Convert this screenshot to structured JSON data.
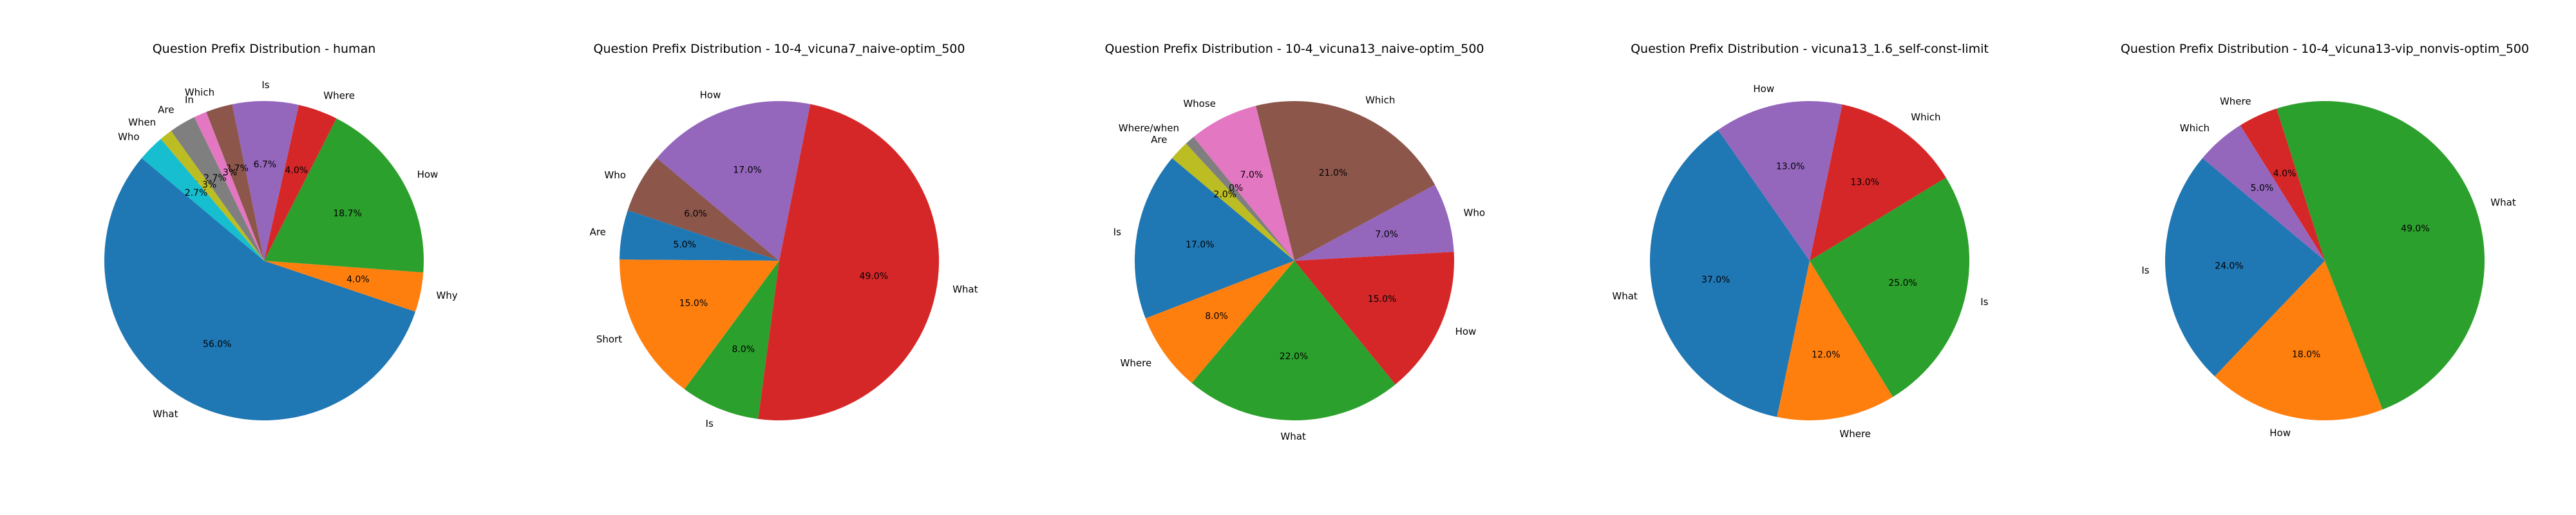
{
  "chart_data": [
    {
      "type": "pie",
      "title": "Question Prefix Distribution - human",
      "start_angle": 140,
      "slices": [
        {
          "label": "What",
          "value": 56.0,
          "pct_label": "56.0%",
          "color": "#1f77b4"
        },
        {
          "label": "Why",
          "value": 4.0,
          "pct_label": "4.0%",
          "color": "#ff7f0e"
        },
        {
          "label": "How",
          "value": 18.7,
          "pct_label": "18.7%",
          "color": "#2ca02c"
        },
        {
          "label": "Where",
          "value": 4.0,
          "pct_label": "4.0%",
          "color": "#d62728"
        },
        {
          "label": "Is",
          "value": 6.7,
          "pct_label": "6.7%",
          "color": "#9467bd"
        },
        {
          "label": "Which",
          "value": 2.7,
          "pct_label": "2.7%",
          "color": "#8c564b"
        },
        {
          "label": "In",
          "value": 1.3,
          "pct_label": "1.3%",
          "color": "#e377c2"
        },
        {
          "label": "Are",
          "value": 2.7,
          "pct_label": "2.7%",
          "color": "#7f7f7f"
        },
        {
          "label": "When",
          "value": 1.3,
          "pct_label": "1.3%",
          "color": "#bcbd22"
        },
        {
          "label": "Who",
          "value": 2.7,
          "pct_label": "2.7%",
          "color": "#17becf"
        }
      ]
    },
    {
      "type": "pie",
      "title": "Question Prefix Distribution - 10-4_vicuna7_naive-optim_500",
      "start_angle": 140,
      "slices": [
        {
          "label": "Who",
          "value": 6.0,
          "pct_label": "6.0%",
          "color": "#8c564b"
        },
        {
          "label": "Are",
          "value": 5.0,
          "pct_label": "5.0%",
          "color": "#1f77b4"
        },
        {
          "label": "Short",
          "value": 15.0,
          "pct_label": "15.0%",
          "color": "#ff7f0e"
        },
        {
          "label": "Is",
          "value": 8.0,
          "pct_label": "8.0%",
          "color": "#2ca02c"
        },
        {
          "label": "What",
          "value": 49.0,
          "pct_label": "49.0%",
          "color": "#d62728"
        },
        {
          "label": "How",
          "value": 17.0,
          "pct_label": "17.0%",
          "color": "#9467bd"
        }
      ]
    },
    {
      "type": "pie",
      "title": "Question Prefix Distribution - 10-4_vicuna13_naive-optim_500",
      "start_angle": 140,
      "slices": [
        {
          "label": "Is",
          "value": 17.0,
          "pct_label": "17.0%",
          "color": "#1f77b4"
        },
        {
          "label": "Where",
          "value": 8.0,
          "pct_label": "8.0%",
          "color": "#ff7f0e"
        },
        {
          "label": "What",
          "value": 22.0,
          "pct_label": "22.0%",
          "color": "#2ca02c"
        },
        {
          "label": "How",
          "value": 15.0,
          "pct_label": "15.0%",
          "color": "#d62728"
        },
        {
          "label": "Who",
          "value": 7.0,
          "pct_label": "7.0%",
          "color": "#9467bd"
        },
        {
          "label": "Which",
          "value": 21.0,
          "pct_label": "21.0%",
          "color": "#8c564b"
        },
        {
          "label": "Whose",
          "value": 7.0,
          "pct_label": "7.0%",
          "color": "#e377c2"
        },
        {
          "label": "Where/when",
          "value": 1.0,
          "pct_label": "1.0%",
          "color": "#7f7f7f"
        },
        {
          "label": "Are",
          "value": 2.0,
          "pct_label": "2.0%",
          "color": "#bcbd22"
        }
      ]
    },
    {
      "type": "pie",
      "title": "Question Prefix Distribution - vicuna13_1.6_self-const-limit",
      "start_angle": 125,
      "slices": [
        {
          "label": "What",
          "value": 37.0,
          "pct_label": "37.0%",
          "color": "#1f77b4"
        },
        {
          "label": "Where",
          "value": 12.0,
          "pct_label": "12.0%",
          "color": "#ff7f0e"
        },
        {
          "label": "Is",
          "value": 25.0,
          "pct_label": "25.0%",
          "color": "#2ca02c"
        },
        {
          "label": "Which",
          "value": 13.0,
          "pct_label": "13.0%",
          "color": "#d62728"
        },
        {
          "label": "How",
          "value": 13.0,
          "pct_label": "13.0%",
          "color": "#9467bd"
        }
      ]
    },
    {
      "type": "pie",
      "title": "Question Prefix Distribution - 10-4_vicuna13-vip_nonvis-optim_500",
      "start_angle": 140,
      "slices": [
        {
          "label": "Is",
          "value": 24.0,
          "pct_label": "24.0%",
          "color": "#1f77b4"
        },
        {
          "label": "How",
          "value": 18.0,
          "pct_label": "18.0%",
          "color": "#ff7f0e"
        },
        {
          "label": "What",
          "value": 49.0,
          "pct_label": "49.0%",
          "color": "#2ca02c"
        },
        {
          "label": "Where",
          "value": 4.0,
          "pct_label": "4.0%",
          "color": "#d62728"
        },
        {
          "label": "Which",
          "value": 5.0,
          "pct_label": "5.0%",
          "color": "#9467bd"
        }
      ]
    }
  ]
}
